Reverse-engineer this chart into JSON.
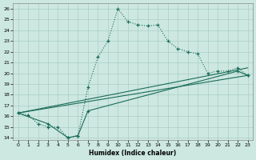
{
  "title": "",
  "xlabel": "Humidex (Indice chaleur)",
  "ylabel": "",
  "xlim": [
    -0.5,
    23.5
  ],
  "ylim": [
    13.8,
    26.5
  ],
  "xticks": [
    0,
    1,
    2,
    3,
    4,
    5,
    6,
    7,
    8,
    9,
    10,
    11,
    12,
    13,
    14,
    15,
    16,
    17,
    18,
    19,
    20,
    21,
    22,
    23
  ],
  "yticks": [
    14,
    15,
    16,
    17,
    18,
    19,
    20,
    21,
    22,
    23,
    24,
    25,
    26
  ],
  "bg_color": "#cde8e0",
  "line_color": "#1a6b58",
  "grid_color": "#aacec6",
  "line1_x": [
    0,
    1,
    2,
    3,
    4,
    5,
    6,
    7,
    8,
    9,
    10,
    11,
    12,
    13,
    14,
    15,
    16,
    17,
    18,
    19,
    20,
    21,
    22,
    23
  ],
  "line1_y": [
    16.3,
    16.1,
    15.3,
    15.0,
    15.0,
    14.0,
    14.2,
    18.7,
    21.5,
    23.0,
    26.0,
    24.8,
    24.5,
    24.4,
    24.5,
    23.0,
    22.3,
    22.0,
    21.8,
    20.0,
    20.2,
    20.2,
    20.5,
    19.8
  ],
  "line2_x": [
    0,
    3,
    5,
    6,
    7,
    22,
    23
  ],
  "line2_y": [
    16.3,
    15.3,
    14.0,
    14.2,
    16.5,
    20.2,
    19.8
  ],
  "line3_x": [
    0,
    23
  ],
  "line3_y": [
    16.3,
    20.5
  ],
  "line4_x": [
    0,
    23
  ],
  "line4_y": [
    16.3,
    19.8
  ]
}
